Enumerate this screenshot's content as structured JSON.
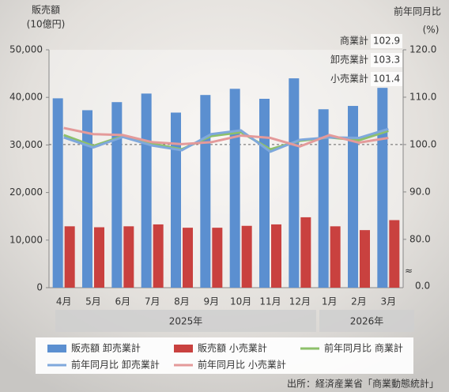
{
  "chart_data": {
    "type": "bar",
    "y_label": [
      "販売額",
      "(10億円)"
    ],
    "y2_label": [
      "前年同月比",
      "(%)"
    ],
    "categories": [
      "4月",
      "5月",
      "6月",
      "7月",
      "8月",
      "9月",
      "10月",
      "11月",
      "12月",
      "1月",
      "2月",
      "3月"
    ],
    "years": [
      {
        "label": "2025年",
        "from": 0,
        "to": 8
      },
      {
        "label": "2026年",
        "from": 9,
        "to": 11
      }
    ],
    "series": [
      {
        "name": "販売額 卸売業計",
        "type": "bar",
        "color": "#5b8fd0",
        "values": [
          39800,
          37300,
          39000,
          40800,
          36800,
          40500,
          41800,
          39700,
          44000,
          37500,
          38200,
          42000
        ]
      },
      {
        "name": "販売額 小売業計",
        "type": "bar",
        "color": "#c9413f",
        "values": [
          12900,
          12700,
          12900,
          13300,
          12600,
          12600,
          13000,
          13300,
          14800,
          12900,
          12100,
          14200
        ]
      },
      {
        "name": "前年同月比 商業計",
        "type": "line",
        "axis": "y2",
        "color": "#8dc06a",
        "end_label": "商業計",
        "values": [
          102.0,
          99.7,
          101.8,
          100.2,
          99.0,
          101.8,
          102.6,
          99.0,
          100.8,
          101.5,
          100.9,
          102.9
        ]
      },
      {
        "name": "前年同月比 卸売業計",
        "type": "line",
        "axis": "y2",
        "color": "#7fa8dc",
        "end_label": "卸売業計",
        "values": [
          101.5,
          99.4,
          101.6,
          99.8,
          98.8,
          102.2,
          103.0,
          98.5,
          101.0,
          101.5,
          101.4,
          103.3
        ]
      },
      {
        "name": "前年同月比 小売業計",
        "type": "line",
        "axis": "y2",
        "color": "#e49a9a",
        "end_label": "小売業計",
        "values": [
          103.5,
          102.2,
          102.0,
          100.5,
          100.1,
          100.5,
          101.9,
          101.4,
          99.6,
          102.0,
          100.4,
          101.4
        ]
      }
    ],
    "ylim": [
      0,
      50000
    ],
    "yticks": [
      0,
      {
        "value": 10000,
        "label": "10,000"
      },
      {
        "value": 20000,
        "label": "20,000"
      },
      {
        "value": 30000,
        "label": "30,000"
      },
      {
        "value": 40000,
        "label": "40,000"
      },
      {
        "value": 50000,
        "label": "50,000"
      }
    ],
    "y2lim": [
      69.8,
      120
    ],
    "y2ticks": [
      {
        "value": 80,
        "label": "80.0"
      },
      {
        "value": 90,
        "label": "90.0"
      },
      {
        "value": 100,
        "label": "100.0"
      },
      {
        "value": 110,
        "label": "110.0"
      },
      {
        "value": 120,
        "label": "120.0"
      }
    ],
    "y2_break_label": "0.0",
    "y2_reference": 100,
    "source": "出所：経済産業省「商業動態統計」"
  }
}
